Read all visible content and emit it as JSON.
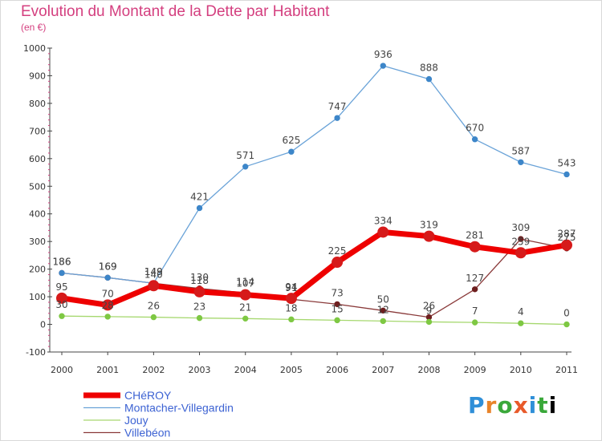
{
  "chart_data": {
    "type": "line",
    "title": "Evolution du Montant de la Dette par Habitant",
    "unit_label": "(en €)",
    "categories": [
      "2000",
      "2001",
      "2002",
      "2003",
      "2004",
      "2005",
      "2006",
      "2007",
      "2008",
      "2009",
      "2010",
      "2011"
    ],
    "ylim": [
      -100,
      1000
    ],
    "yticks": [
      -100,
      0,
      100,
      200,
      300,
      400,
      500,
      600,
      700,
      800,
      900,
      1000
    ],
    "grid": false,
    "legend_position": "bottom-left",
    "series": [
      {
        "name": "CHéROY",
        "color": "#ee0000",
        "marker_color": "#d61a1a",
        "width": 7,
        "marker_r": 6.5,
        "values": [
          95,
          70,
          140,
          118,
          107,
          94,
          225,
          334,
          319,
          281,
          259,
          287
        ]
      },
      {
        "name": "Montacher-Villegardin",
        "color": "#6aa3d8",
        "marker_color": "#3d86c9",
        "width": 1.3,
        "marker_r": 3.2,
        "values": [
          186,
          169,
          149,
          421,
          571,
          625,
          747,
          936,
          888,
          670,
          587,
          543
        ]
      },
      {
        "name": "Jouy",
        "color": "#a6d86f",
        "marker_color": "#7ec843",
        "width": 1.3,
        "marker_r": 3.2,
        "values": [
          30,
          28,
          26,
          23,
          21,
          18,
          15,
          12,
          9,
          7,
          4,
          0
        ]
      },
      {
        "name": "Villebéon",
        "color": "#8a3a3a",
        "marker_color": "#6e1f1f",
        "width": 1.3,
        "marker_r": 3.2,
        "values": [
          186,
          169,
          149,
          130,
          114,
          91,
          73,
          50,
          26,
          127,
          309,
          275
        ]
      }
    ],
    "labels": [
      {
        "series": "CHéROY",
        "text": [
          "95",
          "70",
          "140",
          "118",
          "107",
          "94",
          "225",
          "334",
          "319",
          "281",
          "259",
          "287"
        ]
      },
      {
        "series": "Montacher-Villegardin",
        "text": [
          "186",
          "169",
          "149",
          "421",
          "571",
          "625",
          "747",
          "936",
          "888",
          "670",
          "587",
          "543"
        ]
      },
      {
        "series": "Jouy",
        "text": [
          "30",
          "28",
          "26",
          "23",
          "21",
          "18",
          "15",
          "12",
          "9",
          "7",
          "4",
          "0"
        ]
      },
      {
        "series": "Villebéon",
        "text": [
          "186",
          "169",
          "149",
          "130",
          "114",
          "91",
          "73",
          "50",
          "26",
          "127",
          "309",
          "275"
        ]
      }
    ]
  },
  "logo": {
    "letters": [
      "P",
      "r",
      "o",
      "x",
      "i",
      "t",
      "i"
    ]
  }
}
